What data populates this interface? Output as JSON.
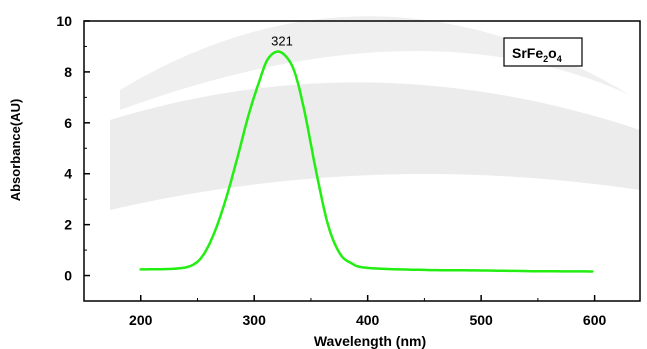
{
  "chart_data": {
    "type": "line",
    "xlabel": "Wavelength (nm)",
    "ylabel": "Absorbance(AU)",
    "xlim": [
      150,
      640
    ],
    "ylim": [
      -1,
      10
    ],
    "x_ticks": [
      200,
      300,
      400,
      500,
      600
    ],
    "x_tick_labels": [
      "200",
      "300",
      "400",
      "500",
      "600"
    ],
    "y_ticks": [
      0,
      2,
      4,
      6,
      8,
      10
    ],
    "y_tick_labels": [
      "0",
      "2",
      "4",
      "6",
      "8",
      "10"
    ],
    "legend": {
      "position": "top-right",
      "base": "SrFe",
      "sub1": "2",
      "mid": "o",
      "sub2": "4"
    },
    "annotations": [
      {
        "text": "321",
        "x": 321,
        "y": 8.8
      }
    ],
    "colors": {
      "series": "#22ee11",
      "axis": "#000000"
    },
    "series": [
      {
        "points": [
          [
            200,
            0.24
          ],
          [
            230,
            0.27
          ],
          [
            245,
            0.4
          ],
          [
            255,
            0.8
          ],
          [
            265,
            1.7
          ],
          [
            275,
            3.0
          ],
          [
            285,
            4.6
          ],
          [
            295,
            6.3
          ],
          [
            305,
            7.7
          ],
          [
            312,
            8.5
          ],
          [
            321,
            8.8
          ],
          [
            330,
            8.5
          ],
          [
            337,
            7.8
          ],
          [
            345,
            6.3
          ],
          [
            355,
            4.0
          ],
          [
            365,
            2.0
          ],
          [
            375,
            0.9
          ],
          [
            385,
            0.5
          ],
          [
            400,
            0.3
          ],
          [
            450,
            0.22
          ],
          [
            500,
            0.2
          ],
          [
            550,
            0.17
          ],
          [
            598,
            0.16
          ]
        ]
      }
    ]
  }
}
